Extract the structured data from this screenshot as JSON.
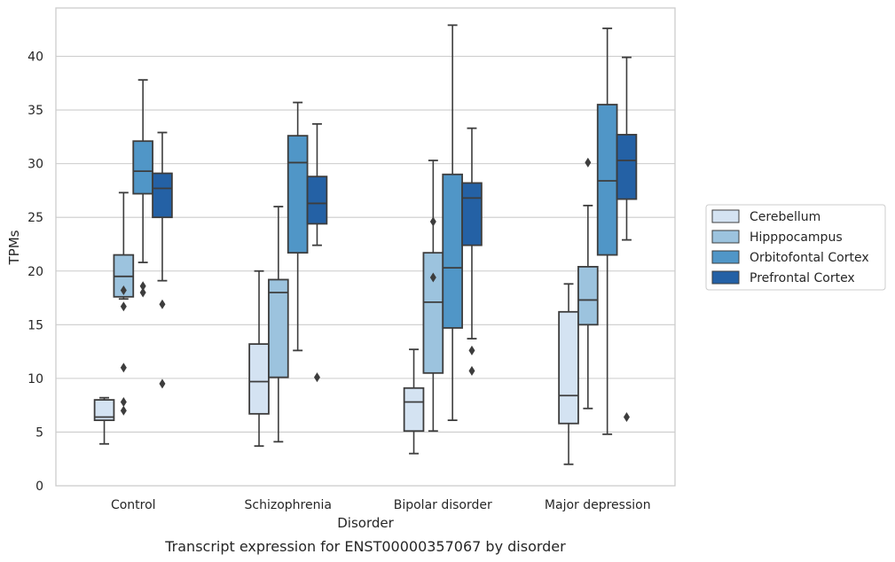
{
  "chart_data": {
    "type": "box",
    "xlabel": "Disorder",
    "ylabel": "TPMs",
    "caption": "Transcript expression for ENST00000357067 by disorder",
    "ylim": [
      0,
      44.5
    ],
    "yticks": [
      0,
      5,
      10,
      15,
      20,
      25,
      30,
      35,
      40
    ],
    "grid": "horizontal",
    "legend_position": "right",
    "categories": [
      "Control",
      "Schizophrenia",
      "Bipolar disorder",
      "Major depression"
    ],
    "series": [
      {
        "name": "Cerebellum",
        "color": "#d4e3f2",
        "boxes": [
          {
            "whisker_low": 3.9,
            "q1": 6.1,
            "median": 6.4,
            "q3": 8.0,
            "whisker_high": 8.2,
            "outliers": []
          },
          {
            "whisker_low": 3.7,
            "q1": 6.7,
            "median": 9.7,
            "q3": 13.2,
            "whisker_high": 20.0,
            "outliers": []
          },
          {
            "whisker_low": 3.0,
            "q1": 5.1,
            "median": 7.8,
            "q3": 9.1,
            "whisker_high": 12.7,
            "outliers": []
          },
          {
            "whisker_low": 2.0,
            "q1": 5.8,
            "median": 8.4,
            "q3": 16.2,
            "whisker_high": 18.8,
            "outliers": []
          }
        ]
      },
      {
        "name": "Hipppocampus",
        "color": "#9cc3de",
        "boxes": [
          {
            "whisker_low": 17.4,
            "q1": 17.6,
            "median": 19.5,
            "q3": 21.5,
            "whisker_high": 27.3,
            "outliers": [
              18.2,
              16.7,
              11.0,
              7.8,
              7.0
            ]
          },
          {
            "whisker_low": 4.1,
            "q1": 10.1,
            "median": 18.0,
            "q3": 19.2,
            "whisker_high": 26.0,
            "outliers": []
          },
          {
            "whisker_low": 5.1,
            "q1": 10.5,
            "median": 17.1,
            "q3": 21.7,
            "whisker_high": 30.3,
            "outliers": [
              24.6,
              19.4
            ]
          },
          {
            "whisker_low": 7.2,
            "q1": 15.0,
            "median": 17.3,
            "q3": 20.4,
            "whisker_high": 26.1,
            "outliers": [
              30.1
            ]
          }
        ]
      },
      {
        "name": "Orbitofontal Cortex",
        "color": "#5096c7",
        "boxes": [
          {
            "whisker_low": 20.8,
            "q1": 27.2,
            "median": 29.3,
            "q3": 32.1,
            "whisker_high": 37.8,
            "outliers": [
              18.6,
              18.0
            ]
          },
          {
            "whisker_low": 12.6,
            "q1": 21.7,
            "median": 30.1,
            "q3": 32.6,
            "whisker_high": 35.7,
            "outliers": []
          },
          {
            "whisker_low": 6.1,
            "q1": 14.7,
            "median": 20.3,
            "q3": 29.0,
            "whisker_high": 42.9,
            "outliers": []
          },
          {
            "whisker_low": 4.8,
            "q1": 21.5,
            "median": 28.4,
            "q3": 35.5,
            "whisker_high": 42.6,
            "outliers": []
          }
        ]
      },
      {
        "name": "Prefrontal Cortex",
        "color": "#2461a5",
        "boxes": [
          {
            "whisker_low": 19.1,
            "q1": 25.0,
            "median": 27.7,
            "q3": 29.1,
            "whisker_high": 32.9,
            "outliers": [
              16.9,
              9.5
            ]
          },
          {
            "whisker_low": 22.4,
            "q1": 24.4,
            "median": 26.3,
            "q3": 28.8,
            "whisker_high": 33.7,
            "outliers": [
              10.1
            ]
          },
          {
            "whisker_low": 13.7,
            "q1": 22.4,
            "median": 26.8,
            "q3": 28.2,
            "whisker_high": 33.3,
            "outliers": [
              12.6,
              10.7
            ]
          },
          {
            "whisker_low": 22.9,
            "q1": 26.7,
            "median": 30.3,
            "q3": 32.7,
            "whisker_high": 39.9,
            "outliers": [
              6.4
            ]
          }
        ]
      }
    ]
  }
}
